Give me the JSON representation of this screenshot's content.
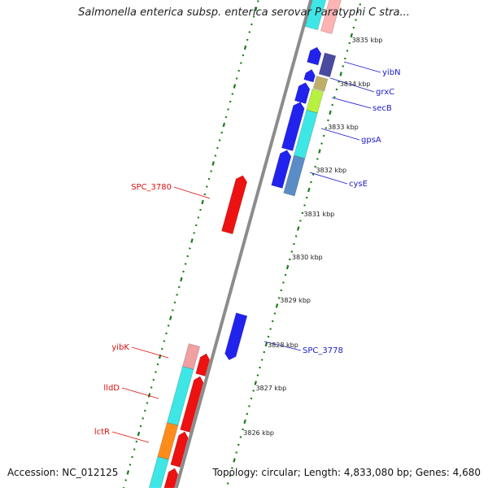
{
  "title": "Salmonella enterica subsp. enterica serovar Paratyphi C stra...",
  "footer": {
    "accession": "Accession: NC_012125",
    "summary": "Topology: circular; Length: 4,833,080 bp; Genes: 4,680"
  },
  "colors": {
    "backbone": "#8c8c8c",
    "tick": "#1a7a1a",
    "forward_label": "#1a1acc",
    "reverse_label": "#dd1111"
  },
  "kbp_labels": [
    "3835 kbp",
    "3834 kbp",
    "3833 kbp",
    "3832 kbp",
    "3831 kbp",
    "3830 kbp",
    "3829 kbp",
    "3828 kbp",
    "3827 kbp",
    "3826 kbp"
  ],
  "labels": {
    "forward": [
      "yibN",
      "grxC",
      "secB",
      "gpsA",
      "cysE",
      "SPC_3778"
    ],
    "reverse": [
      "SPC_3780",
      "yibK",
      "lldD",
      "lctR"
    ]
  }
}
